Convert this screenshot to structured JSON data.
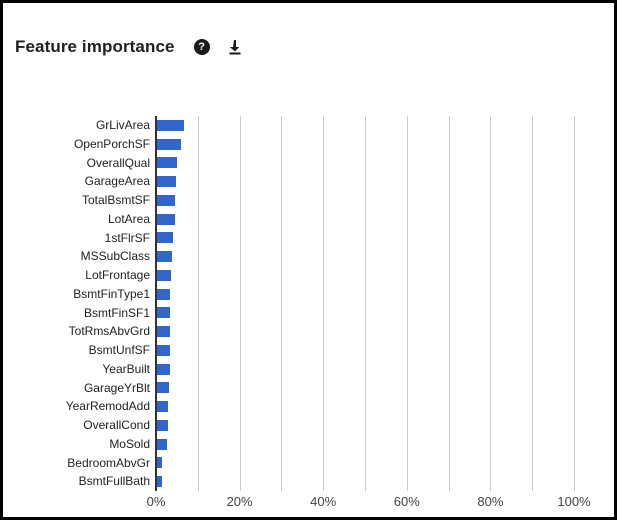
{
  "header": {
    "title": "Feature importance",
    "help_glyph": "?",
    "help_icon": "help-circle-icon",
    "download_icon": "download-icon"
  },
  "colors": {
    "bar": "#3366cc",
    "gridline": "#cccccc",
    "y_axis_line": "#333333",
    "y_label_text": "#222222",
    "x_label_text": "#444444",
    "title_text": "#212121",
    "icon": "#1a1a1a",
    "background": "#ffffff",
    "border": "#000000"
  },
  "chart_data": {
    "type": "bar",
    "orientation": "horizontal",
    "title": "Feature importance",
    "xlabel": "",
    "ylabel": "",
    "xlim": [
      0,
      100
    ],
    "x_unit": "%",
    "grid": true,
    "gridline_interval": 10,
    "legend": "none",
    "categories": [
      "GrLivArea",
      "OpenPorchSF",
      "OverallQual",
      "GarageArea",
      "TotalBsmtSF",
      "LotArea",
      "1stFlrSF",
      "MSSubClass",
      "LotFrontage",
      "BsmtFinType1",
      "BsmtFinSF1",
      "TotRmsAbvGrd",
      "BsmtUnfSF",
      "YearBuilt",
      "GarageYrBlt",
      "YearRemodAdd",
      "OverallCond",
      "MoSold",
      "BedroomAbvGr",
      "BsmtFullBath"
    ],
    "values": [
      6.4,
      5.8,
      4.9,
      4.5,
      4.4,
      4.4,
      3.9,
      3.7,
      3.4,
      3.2,
      3.2,
      3.1,
      3.0,
      3.0,
      2.9,
      2.7,
      2.7,
      2.4,
      1.2,
      1.2
    ],
    "x_tick_labels": [
      "0%",
      "20%",
      "40%",
      "60%",
      "80%",
      "100%"
    ],
    "x_tick_values": [
      0,
      20,
      40,
      60,
      80,
      100
    ]
  }
}
